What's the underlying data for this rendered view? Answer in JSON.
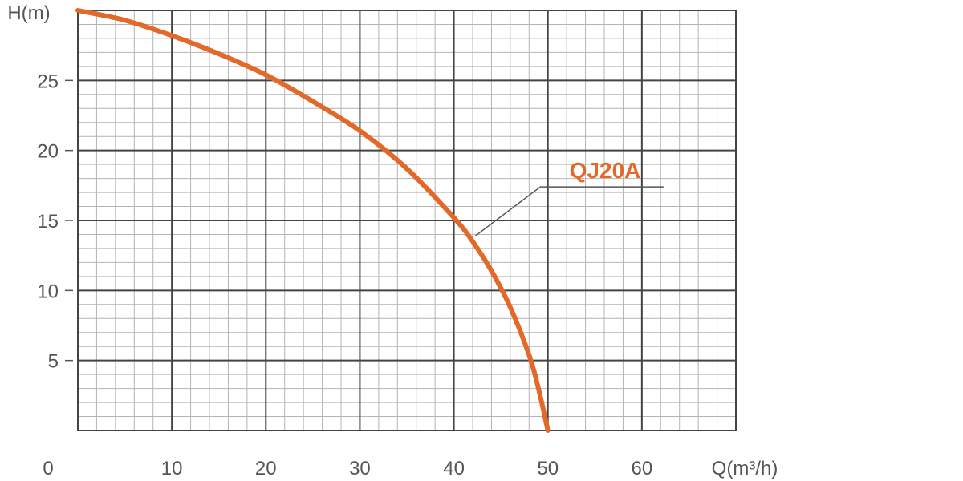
{
  "chart_data": {
    "type": "line",
    "title": "",
    "xlabel": "Q(m³/h)",
    "ylabel": "H(m)",
    "origin_label": "0",
    "xlim": [
      0,
      70
    ],
    "ylim": [
      0,
      30
    ],
    "x_ticks": [
      10,
      20,
      30,
      40,
      50,
      60
    ],
    "y_ticks": [
      5,
      10,
      15,
      20,
      25
    ],
    "x_tick_labels": [
      "10",
      "20",
      "30",
      "40",
      "50",
      "60"
    ],
    "y_tick_labels": [
      "5",
      "10",
      "15",
      "20",
      "25"
    ],
    "grid": true,
    "grid_minor_step_x": 2,
    "grid_minor_step_y": 1,
    "grid_major_step_x": 10,
    "grid_major_step_y": 5,
    "series": [
      {
        "name": "QJ20A",
        "color": "#e2692a",
        "x": [
          0,
          5,
          10,
          15,
          20,
          25,
          30,
          35,
          40,
          42,
          44,
          46,
          48,
          49,
          50
        ],
        "y": [
          30,
          29.3,
          28.2,
          26.9,
          25.4,
          23.5,
          21.4,
          18.7,
          15.2,
          13.5,
          11.4,
          8.8,
          5.4,
          3.0,
          0
        ]
      }
    ],
    "annotation": {
      "text": "QJ20A",
      "color": "#e2692a",
      "leader_from": [
        42.3,
        13.9
      ],
      "leader_elbow": [
        49.2,
        17.4
      ],
      "leader_to": [
        62.3,
        17.4
      ]
    }
  },
  "colors": {
    "grid_major": "#444444",
    "grid_minor": "#b4b4b4",
    "axis_text": "#555555",
    "leader_line": "#555555"
  }
}
